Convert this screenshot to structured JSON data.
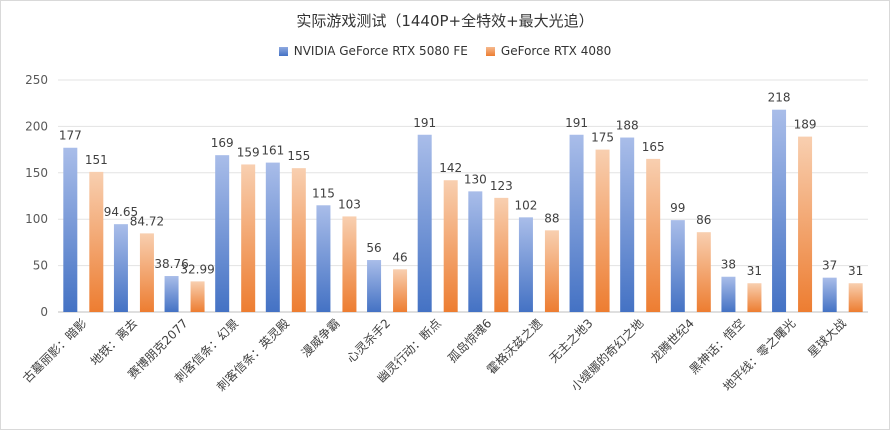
{
  "chart_data": {
    "type": "bar",
    "title": "实际游戏测试（1440P+全特效+最大光追）",
    "categories": [
      "古墓丽影：暗影",
      "地铁：离去",
      "赛博朋克2077",
      "刺客信条：幻景",
      "刺客信条：英灵殿",
      "漫威争霸",
      "心灵杀手2",
      "幽灵行动：断点",
      "孤岛惊魂6",
      "霍格沃兹之遗",
      "无主之地3",
      "小缇娜的奇幻之地",
      "龙腾世纪4",
      "黑神话：悟空",
      "地平线：零之曙光",
      "星球大战"
    ],
    "series": [
      {
        "name": "NVIDIA GeForce RTX 5080 FE",
        "color": "#4472C4",
        "values": [
          177,
          94.65,
          38.76,
          169,
          161,
          115,
          56,
          191,
          130,
          102,
          191,
          188,
          99,
          38,
          218,
          37
        ],
        "labels": [
          "177",
          "94.65",
          "38.76",
          "169",
          "161",
          "115",
          "56",
          "191",
          "130",
          "102",
          "191",
          "188",
          "99",
          "38",
          "218",
          "37"
        ]
      },
      {
        "name": "GeForce RTX 4080",
        "color": "#ED7D31",
        "values": [
          151,
          84.72,
          32.99,
          159,
          155,
          103,
          46,
          142,
          123,
          88,
          175,
          165,
          86,
          31,
          189,
          31
        ],
        "labels": [
          "151",
          "84.72",
          "32.99",
          "159",
          "155",
          "103",
          "46",
          "142",
          "123",
          "88",
          "175",
          "165",
          "86",
          "31",
          "189",
          "31"
        ]
      }
    ],
    "ylim": [
      0,
      250
    ],
    "yticks": [
      0,
      50,
      100,
      150,
      200,
      250
    ],
    "grid": true,
    "legend_position": "top"
  }
}
